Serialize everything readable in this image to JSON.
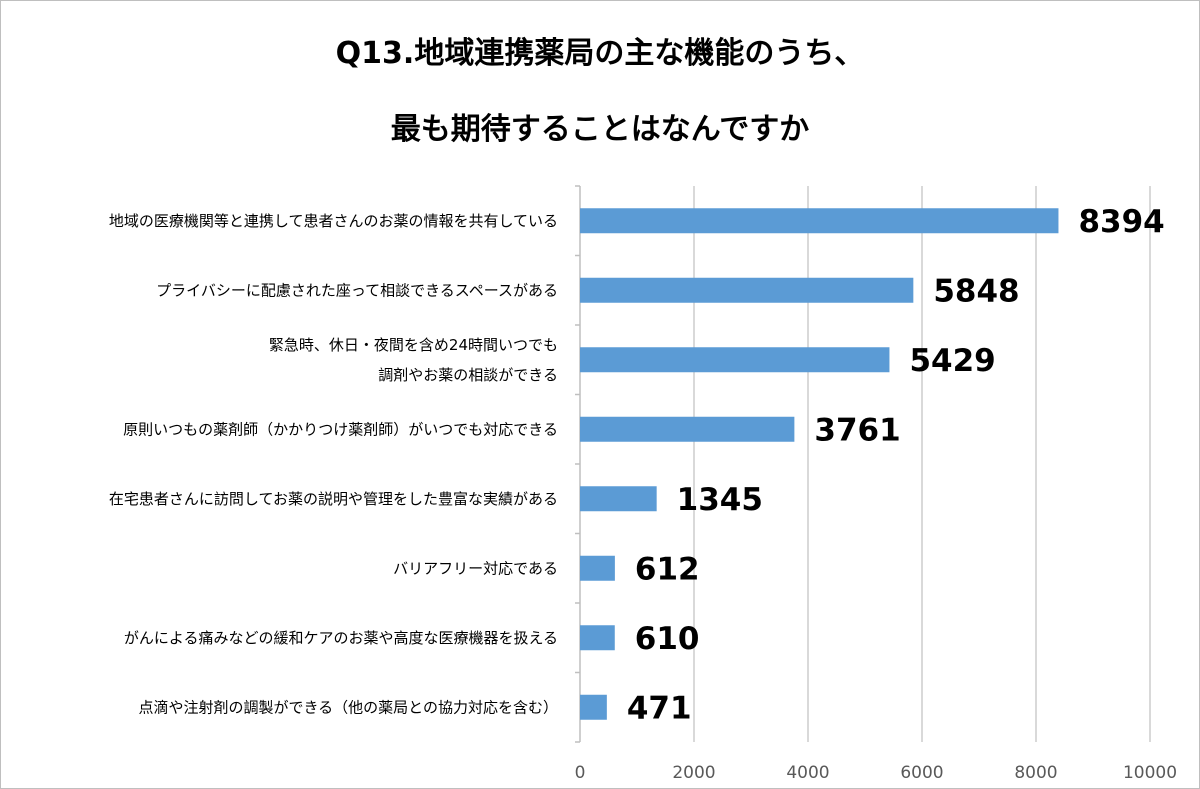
{
  "chart_data": {
    "type": "bar",
    "orientation": "horizontal",
    "title": [
      "Q13.地域連携薬局の主な機能のうち、",
      "最も期待することはなんですか"
    ],
    "categories": [
      [
        "地域の医療機関等と連携して患者さんのお薬の情報を共有している"
      ],
      [
        "プライバシーに配慮された座って相談できるスペースがある"
      ],
      [
        "緊急時、休日・夜間を含め24時間いつでも",
        "調剤やお薬の相談ができる"
      ],
      [
        "原則いつもの薬剤師（かかりつけ薬剤師）がいつでも対応できる"
      ],
      [
        "在宅患者さんに訪問してお薬の説明や管理をした豊富な実績がある"
      ],
      [
        "バリアフリー対応である"
      ],
      [
        "がんによる痛みなどの緩和ケアのお薬や高度な医療機器を扱える"
      ],
      [
        "点滴や注射剤の調製ができる（他の薬局との協力対応を含む）"
      ]
    ],
    "values": [
      8394,
      5848,
      5429,
      3761,
      1345,
      612,
      610,
      471
    ],
    "xlim": [
      0,
      10000
    ],
    "xticks": [
      0,
      2000,
      4000,
      6000,
      8000,
      10000
    ],
    "grid": true,
    "legend": "none",
    "colors": {
      "bar": "#5b9bd5",
      "grid": "#d9d9d9",
      "axis": "#bfbfbf",
      "tick_text": "#595959"
    }
  }
}
